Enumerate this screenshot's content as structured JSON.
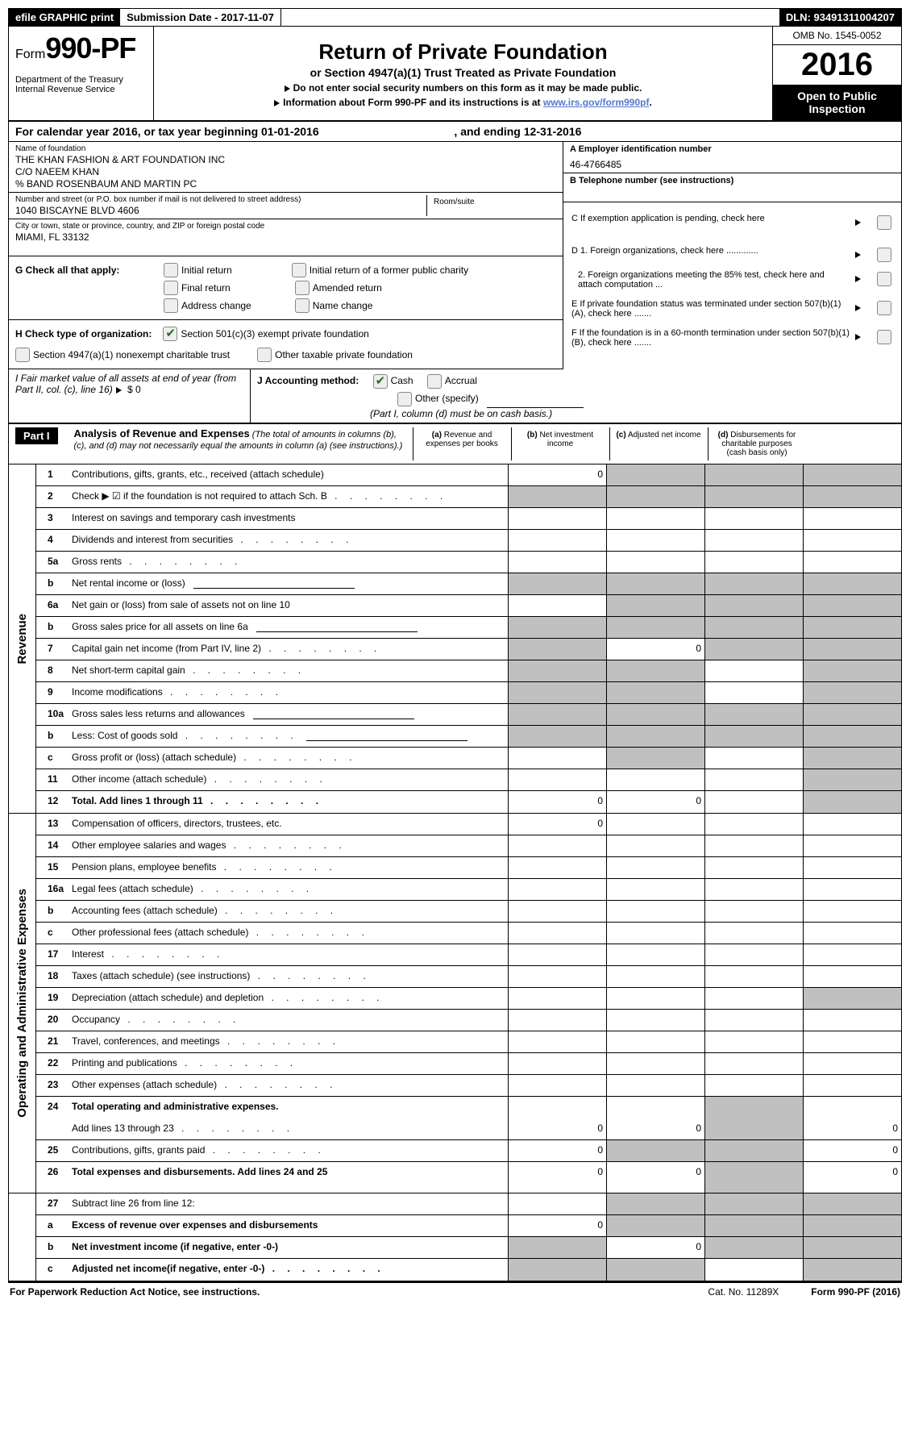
{
  "top": {
    "efile": "efile GRAPHIC print",
    "submission": "Submission Date - 2017-11-07",
    "dln": "DLN: 93491311004207"
  },
  "header": {
    "form_prefix": "Form",
    "form_number": "990-PF",
    "dept1": "Department of the Treasury",
    "dept2": "Internal Revenue Service",
    "title": "Return of Private Foundation",
    "subtitle": "or Section 4947(a)(1) Trust Treated as Private Foundation",
    "note1": "Do not enter social security numbers on this form as it may be made public.",
    "note2_pre": "Information about Form 990-PF and its instructions is at ",
    "note2_link": "www.irs.gov/form990pf",
    "omb": "OMB No. 1545-0052",
    "year": "2016",
    "open": "Open to Public Inspection"
  },
  "calendar": {
    "pre": "For calendar year 2016, or tax year beginning ",
    "begin": "01-01-2016",
    "mid": ", and ending ",
    "end": "12-31-2016"
  },
  "id": {
    "name_label": "Name of foundation",
    "name1": "THE KHAN FASHION & ART FOUNDATION INC",
    "name2": "C/O NAEEM KHAN",
    "name3": "% BAND ROSENBAUM AND MARTIN PC",
    "addr_label": "Number and street (or P.O. box number if mail is not delivered to street address)",
    "addr": "1040 BISCAYNE BLVD 4606",
    "room_label": "Room/suite",
    "city_label": "City or town, state or province, country, and ZIP or foreign postal code",
    "city": "MIAMI, FL  33132",
    "a_label": "A Employer identification number",
    "a_val": "46-4766485",
    "b_label": "B Telephone number (see instructions)",
    "c_label": "C  If exemption application is pending, check here",
    "d1": "D 1. Foreign organizations, check here .............",
    "d2": "2. Foreign organizations meeting the 85% test, check here and attach computation ...",
    "e": "E  If private foundation status was terminated under section 507(b)(1)(A), check here .......",
    "f": "F  If the foundation is in a 60-month termination under section 507(b)(1)(B), check here ......."
  },
  "g": {
    "label": "G Check all that apply:",
    "initial": "Initial return",
    "initial_former": "Initial return of a former public charity",
    "final": "Final return",
    "amended": "Amended return",
    "addr_change": "Address change",
    "name_change": "Name change"
  },
  "h": {
    "label": "H Check type of organization:",
    "s501": "Section 501(c)(3) exempt private foundation",
    "s4947": "Section 4947(a)(1) nonexempt charitable trust",
    "other": "Other taxable private foundation"
  },
  "fmv": {
    "i_label": "I Fair market value of all assets at end of year (from Part II, col. (c), line 16)",
    "i_val": "$  0",
    "j_label": "J Accounting method:",
    "cash": "Cash",
    "accrual": "Accrual",
    "other": "Other (specify)",
    "note": "(Part I, column (d) must be on cash basis.)"
  },
  "part1": {
    "part": "Part I",
    "title": "Analysis of Revenue and Expenses",
    "desc": " (The total of amounts in columns (b), (c), and (d) may not necessarily equal the amounts in column (a) (see instructions).)",
    "col_a_t": "(a)",
    "col_a": "Revenue and expenses per books",
    "col_b_t": "(b)",
    "col_b": "Net investment income",
    "col_c_t": "(c)",
    "col_c": "Adjusted net income",
    "col_d_t": "(d)",
    "col_d": "Disbursements for charitable purposes (cash basis only)"
  },
  "sections": {
    "revenue": "Revenue",
    "expenses": "Operating and Administrative Expenses"
  },
  "rows": [
    {
      "n": "1",
      "d": "Contributions, gifts, grants, etc., received (attach schedule)",
      "a": "0",
      "b": "s",
      "c": "s",
      "dd": "s"
    },
    {
      "n": "2",
      "d": "Check ▶ ☑ if the foundation is not required to attach Sch. B",
      "dots": 1,
      "a": "s",
      "b": "s",
      "c": "s",
      "dd": "s"
    },
    {
      "n": "3",
      "d": "Interest on savings and temporary cash investments"
    },
    {
      "n": "4",
      "d": "Dividends and interest from securities",
      "dots": 1
    },
    {
      "n": "5a",
      "d": "Gross rents",
      "dots": 1
    },
    {
      "n": "b",
      "d": "Net rental income or (loss)",
      "u": 1,
      "a": "s",
      "b": "s",
      "c": "s",
      "dd": "s"
    },
    {
      "n": "6a",
      "d": "Net gain or (loss) from sale of assets not on line 10",
      "b": "s",
      "c": "s",
      "dd": "s"
    },
    {
      "n": "b",
      "d": "Gross sales price for all assets on line 6a",
      "u": 1,
      "a": "s",
      "b": "s",
      "c": "s",
      "dd": "s"
    },
    {
      "n": "7",
      "d": "Capital gain net income (from Part IV, line 2)",
      "dots": 1,
      "a": "s",
      "b": "0",
      "c": "s",
      "dd": "s"
    },
    {
      "n": "8",
      "d": "Net short-term capital gain",
      "dots": 1,
      "a": "s",
      "b": "s",
      "dd": "s"
    },
    {
      "n": "9",
      "d": "Income modifications",
      "dots": 1,
      "a": "s",
      "b": "s",
      "dd": "s"
    },
    {
      "n": "10a",
      "d": "Gross sales less returns and allowances",
      "u": 1,
      "a": "s",
      "b": "s",
      "c": "s",
      "dd": "s"
    },
    {
      "n": "b",
      "d": "Less: Cost of goods sold",
      "dots": 1,
      "u": 1,
      "a": "s",
      "b": "s",
      "c": "s",
      "dd": "s"
    },
    {
      "n": "c",
      "d": "Gross profit or (loss) (attach schedule)",
      "dots": 1,
      "b": "s",
      "dd": "s"
    },
    {
      "n": "11",
      "d": "Other income (attach schedule)",
      "dots": 1,
      "dd": "s"
    },
    {
      "n": "12",
      "d": "Total. Add lines 1 through 11",
      "bold": 1,
      "dots": 1,
      "a": "0",
      "b": "0",
      "dd": "s"
    }
  ],
  "exp_rows": [
    {
      "n": "13",
      "d": "Compensation of officers, directors, trustees, etc.",
      "a": "0"
    },
    {
      "n": "14",
      "d": "Other employee salaries and wages",
      "dots": 1
    },
    {
      "n": "15",
      "d": "Pension plans, employee benefits",
      "dots": 1
    },
    {
      "n": "16a",
      "d": "Legal fees (attach schedule)",
      "dots": 1
    },
    {
      "n": "b",
      "d": "Accounting fees (attach schedule)",
      "dots": 1
    },
    {
      "n": "c",
      "d": "Other professional fees (attach schedule)",
      "dots": 1
    },
    {
      "n": "17",
      "d": "Interest",
      "dots": 1
    },
    {
      "n": "18",
      "d": "Taxes (attach schedule) (see instructions)",
      "dots": 1
    },
    {
      "n": "19",
      "d": "Depreciation (attach schedule) and depletion",
      "dots": 1,
      "dd": "s"
    },
    {
      "n": "20",
      "d": "Occupancy",
      "dots": 1
    },
    {
      "n": "21",
      "d": "Travel, conferences, and meetings",
      "dots": 1
    },
    {
      "n": "22",
      "d": "Printing and publications",
      "dots": 1
    },
    {
      "n": "23",
      "d": "Other expenses (attach schedule)",
      "dots": 1
    },
    {
      "n": "24",
      "d": "Total operating and administrative expenses.",
      "bold": 1,
      "nb": 1,
      "c": "s"
    },
    {
      "n": "",
      "d": "Add lines 13 through 23",
      "dots": 1,
      "a": "0",
      "b": "0",
      "c": "s",
      "dd": "0"
    },
    {
      "n": "25",
      "d": "Contributions, gifts, grants paid",
      "dots": 1,
      "a": "0",
      "b": "s",
      "c": "s",
      "dd": "0"
    },
    {
      "n": "26",
      "d": "Total expenses and disbursements. Add lines 24 and 25",
      "tall": 1,
      "bold": 1,
      "a": "0",
      "b": "0",
      "c": "s",
      "dd": "0"
    }
  ],
  "net_rows": [
    {
      "n": "27",
      "d": "Subtract line 26 from line 12:",
      "b": "s",
      "c": "s",
      "dd": "s"
    },
    {
      "n": "a",
      "d": "Excess of revenue over expenses and disbursements",
      "bold": 1,
      "a": "0",
      "b": "s",
      "c": "s",
      "dd": "s"
    },
    {
      "n": "b",
      "d": "Net investment income (if negative, enter -0-)",
      "bold": 1,
      "a": "s",
      "b": "0",
      "c": "s",
      "dd": "s"
    },
    {
      "n": "c",
      "d": "Adjusted net income(if negative, enter -0-)",
      "bold": 1,
      "dots": 1,
      "a": "s",
      "b": "s",
      "dd": "s"
    }
  ],
  "footer": {
    "left": "For Paperwork Reduction Act Notice, see instructions.",
    "cat": "Cat. No. 11289X",
    "form": "Form 990-PF (2016)"
  }
}
